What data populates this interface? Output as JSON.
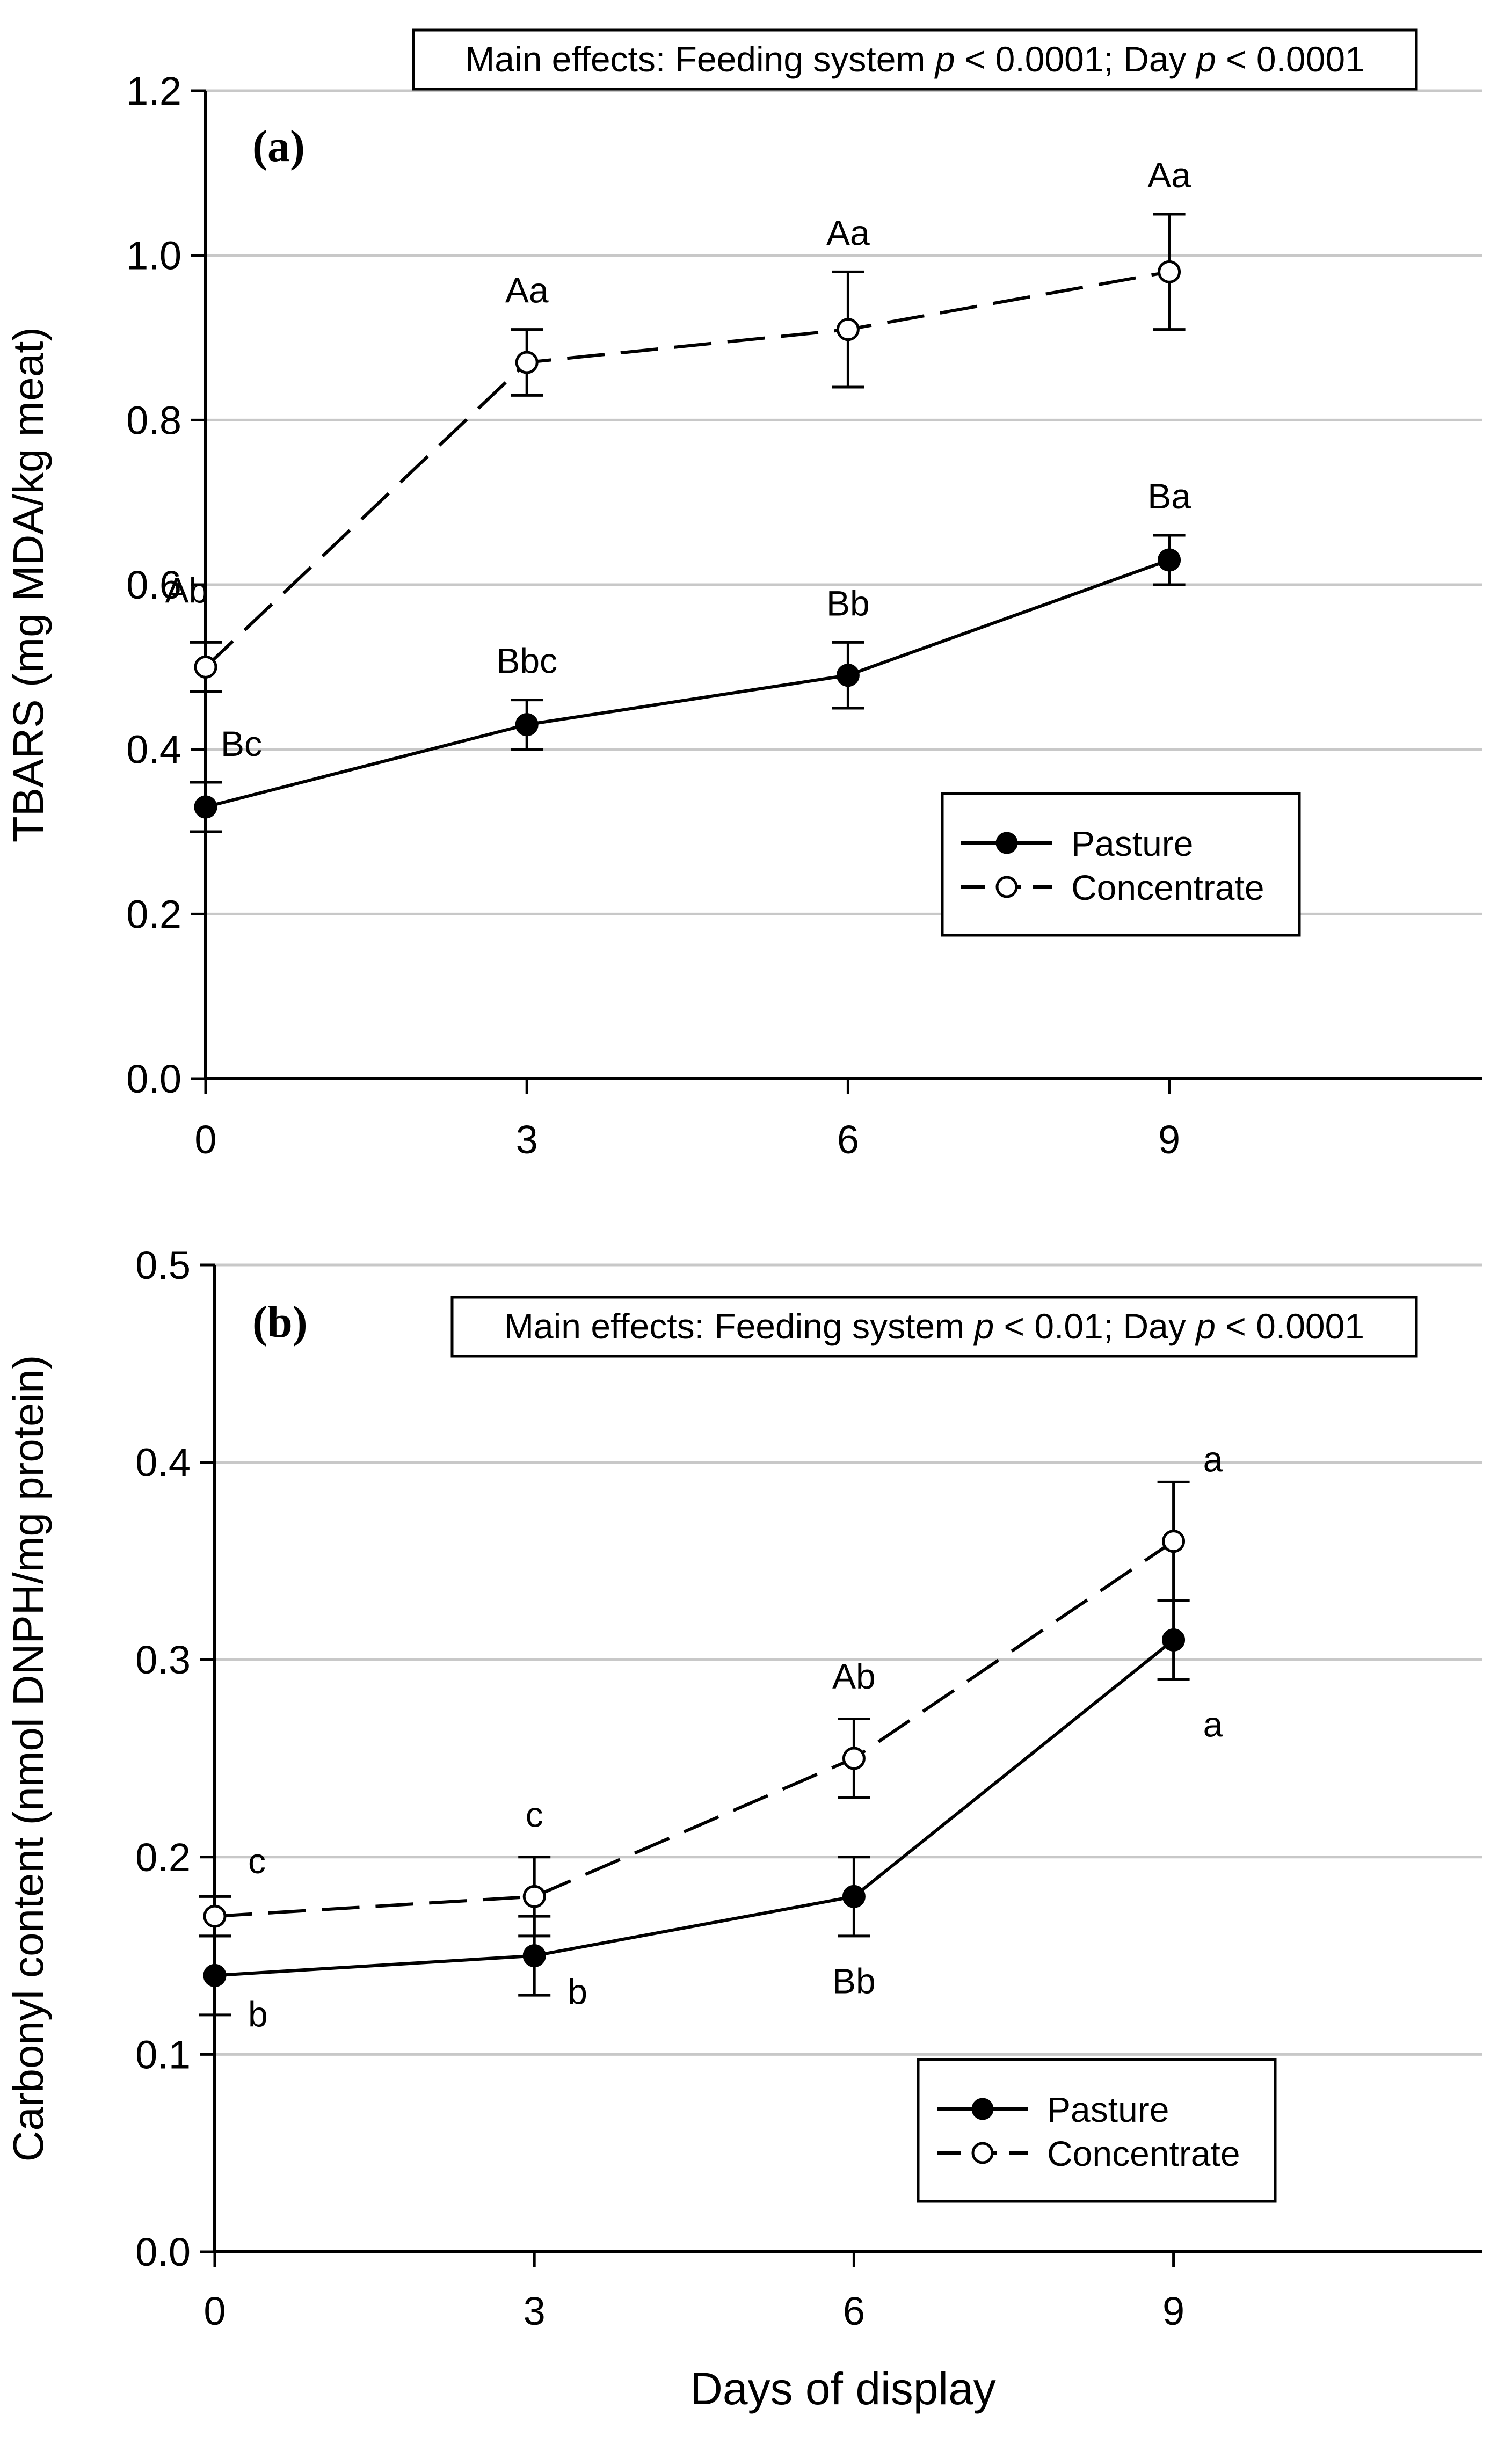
{
  "chart_data": [
    {
      "type": "line",
      "panel_label": "(a)",
      "xlabel": "",
      "ylabel": "TBARS (mg MDA/kg meat)",
      "xlim": [
        0,
        12
      ],
      "ylim": [
        0,
        1.2
      ],
      "xticks": [
        0,
        3,
        6,
        9
      ],
      "xtick_labels": [
        "0",
        "3",
        "6",
        "9"
      ],
      "yticks": [
        0,
        0.2,
        0.4,
        0.6,
        0.8,
        1.0,
        1.2
      ],
      "ytick_labels": [
        "0.0",
        "0.2",
        "0.4",
        "0.6",
        "0.8",
        "1.0",
        "1.2"
      ],
      "grid": "horizontal",
      "annotation": {
        "text_before_p1": "Main effects: Feeding system ",
        "p_symbol": "p",
        "text_before_p2": " < 0.0001; Day ",
        "text_end": " < 0.0001"
      },
      "legend": {
        "position": "lower-right",
        "entries": [
          "Pasture",
          "Concentrate"
        ]
      },
      "series": [
        {
          "name": "Pasture",
          "marker": "filled-circle",
          "line": "solid",
          "x": [
            0,
            3,
            6,
            9
          ],
          "y": [
            0.33,
            0.43,
            0.49,
            0.63
          ],
          "err": [
            0.03,
            0.03,
            0.04,
            0.03
          ],
          "labels": [
            "Bc",
            "Bbc",
            "Bb",
            "Ba"
          ]
        },
        {
          "name": "Concentrate",
          "marker": "open-circle",
          "line": "dashed",
          "x": [
            0,
            3,
            6,
            9
          ],
          "y": [
            0.5,
            0.87,
            0.91,
            0.98
          ],
          "err": [
            0.03,
            0.04,
            0.07,
            0.07
          ],
          "labels": [
            "Ab",
            "Aa",
            "Aa",
            "Aa"
          ]
        }
      ]
    },
    {
      "type": "line",
      "panel_label": "(b)",
      "xlabel": "Days of display",
      "ylabel": "Carbonyl content (nmol DNPH/mg protein)",
      "xlim": [
        0,
        12
      ],
      "ylim": [
        0,
        0.5
      ],
      "xticks": [
        0,
        3,
        6,
        9
      ],
      "xtick_labels": [
        "0",
        "3",
        "6",
        "9"
      ],
      "yticks": [
        0,
        0.1,
        0.2,
        0.3,
        0.4,
        0.5
      ],
      "ytick_labels": [
        "0.0",
        "0.1",
        "0.2",
        "0.3",
        "0.4",
        "0.5"
      ],
      "grid": "horizontal",
      "annotation": {
        "text_before_p1": "Main effects: Feeding system ",
        "p_symbol": "p",
        "text_before_p2": " < 0.01; Day ",
        "text_end": " < 0.0001"
      },
      "legend": {
        "position": "lower-right",
        "entries": [
          "Pasture",
          "Concentrate"
        ]
      },
      "series": [
        {
          "name": "Pasture",
          "marker": "filled-circle",
          "line": "solid",
          "x": [
            0,
            3,
            6,
            9
          ],
          "y": [
            0.14,
            0.15,
            0.18,
            0.31
          ],
          "err": [
            0.02,
            0.02,
            0.02,
            0.02
          ],
          "labels": [
            "b",
            "b",
            "Bb",
            "a"
          ]
        },
        {
          "name": "Concentrate",
          "marker": "open-circle",
          "line": "dashed",
          "x": [
            0,
            3,
            6,
            9
          ],
          "y": [
            0.17,
            0.18,
            0.25,
            0.36
          ],
          "err": [
            0.01,
            0.02,
            0.02,
            0.03
          ],
          "labels": [
            "c",
            "c",
            "Ab",
            "a"
          ]
        }
      ]
    }
  ]
}
